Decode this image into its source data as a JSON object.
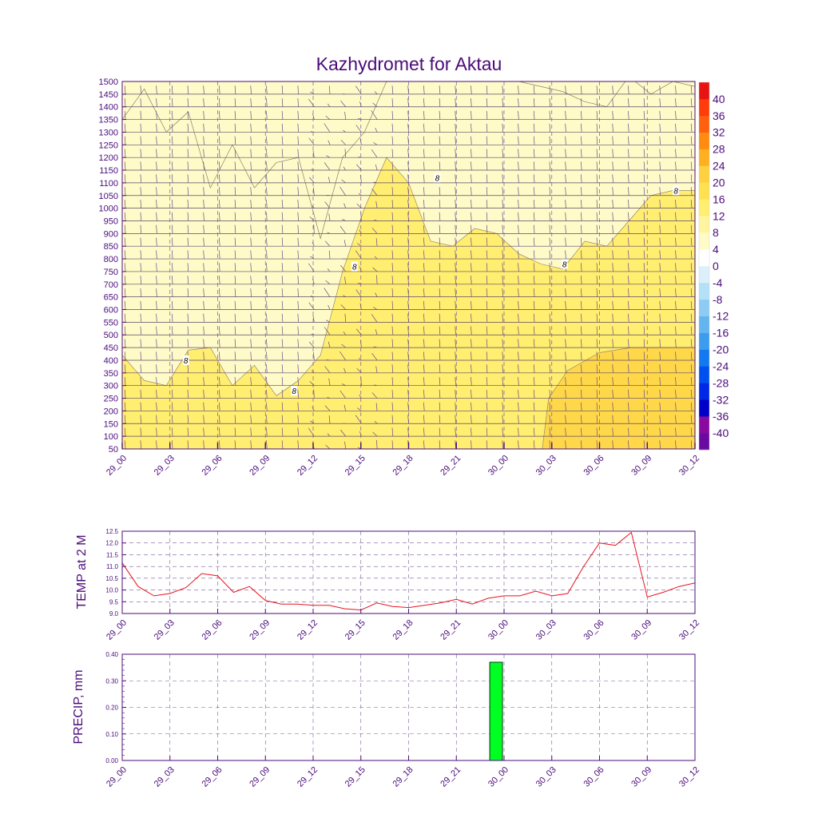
{
  "title": "Kazhydromet for Aktau",
  "colors": {
    "frame": "#4b0c7a",
    "text": "#4b0c7a",
    "grid": "#7a5a9a",
    "temp_line": "#e8141e",
    "precip_bar": "#00ff22",
    "fill_light": "#fffbc8",
    "fill_mid": "#ffee70",
    "fill_warm": "#ffd84a",
    "barb": "#6a4a8a"
  },
  "time_ticks": [
    "29_00",
    "29_03",
    "29_06",
    "29_09",
    "29_12",
    "29_15",
    "29_18",
    "29_21",
    "30_00",
    "30_03",
    "30_06",
    "30_09",
    "30_12"
  ],
  "chart_data": [
    {
      "type": "heatmap",
      "title": "Kazhydromet for Aktau",
      "ylim": [
        50,
        1500
      ],
      "y_ticks": [
        1500,
        1450,
        1400,
        1350,
        1300,
        1250,
        1200,
        1150,
        1100,
        1050,
        1000,
        950,
        900,
        850,
        800,
        750,
        700,
        650,
        600,
        550,
        500,
        450,
        400,
        350,
        300,
        250,
        200,
        150,
        100,
        50
      ],
      "contour_label": "8",
      "contour_8_height": [
        1350,
        1470,
        1300,
        1380,
        1080,
        1250,
        1080,
        1180,
        1200,
        880,
        1200,
        1300,
        1500,
        1500,
        1500,
        1500,
        1500,
        1500,
        1500,
        1480,
        1460,
        1420,
        1400,
        1520,
        1450,
        1500,
        1480
      ],
      "contour_12_height": [
        420,
        320,
        300,
        440,
        450,
        300,
        380,
        260,
        320,
        420,
        750,
        1000,
        1200,
        1100,
        870,
        850,
        920,
        900,
        820,
        780,
        760,
        870,
        850,
        950,
        1050,
        1070,
        1070
      ],
      "colorbar": {
        "labels": [
          "40",
          "36",
          "32",
          "28",
          "24",
          "20",
          "16",
          "12",
          "8",
          "4",
          "0",
          "-4",
          "-8",
          "-12",
          "-16",
          "-20",
          "-24",
          "-28",
          "-32",
          "-36",
          "-40"
        ],
        "colors": [
          "#6a0aa0",
          "#8a0aa0",
          "#0000c8",
          "#0028e6",
          "#0050f0",
          "#1478f0",
          "#3c9cf0",
          "#64b4f0",
          "#8cccf4",
          "#b4e0f8",
          "#dcf0fc",
          "#ffffff",
          "#fffbc8",
          "#fff5a0",
          "#ffee70",
          "#ffe050",
          "#ffd040",
          "#ffb020",
          "#ff8c10",
          "#ff6010",
          "#ff3c0a",
          "#e81414"
        ]
      }
    },
    {
      "type": "line",
      "ylabel": "TEMP at 2 M",
      "ylim": [
        9.0,
        12.5
      ],
      "y_ticks": [
        "12.5",
        "12.0",
        "11.5",
        "11.0",
        "10.5",
        "10.0",
        "9.5",
        "9.0"
      ],
      "x": [
        0,
        1,
        2,
        3,
        4,
        5,
        6,
        7,
        8,
        9,
        10,
        11,
        12,
        13,
        14,
        15,
        16,
        17,
        18,
        19,
        20,
        21,
        22,
        23,
        24,
        25,
        26,
        27,
        28,
        29,
        30,
        31,
        32,
        33,
        34,
        35,
        36
      ],
      "values": [
        11.15,
        10.15,
        9.75,
        9.85,
        10.1,
        10.7,
        10.6,
        9.9,
        10.15,
        9.55,
        9.4,
        9.4,
        9.35,
        9.35,
        9.2,
        9.15,
        9.45,
        9.3,
        9.25,
        9.35,
        9.45,
        9.6,
        9.4,
        9.65,
        9.75,
        9.75,
        9.95,
        9.75,
        9.85,
        11.0,
        12.0,
        11.9,
        12.45,
        9.7,
        9.9,
        10.15,
        10.3
      ]
    },
    {
      "type": "bar",
      "ylabel": "PRECIP, mm",
      "ylim": [
        0.0,
        0.4
      ],
      "y_ticks": [
        "0.40",
        "0.30",
        "0.20",
        "0.10",
        "0.00"
      ],
      "x": [
        23.5
      ],
      "values": [
        0.37
      ]
    }
  ]
}
